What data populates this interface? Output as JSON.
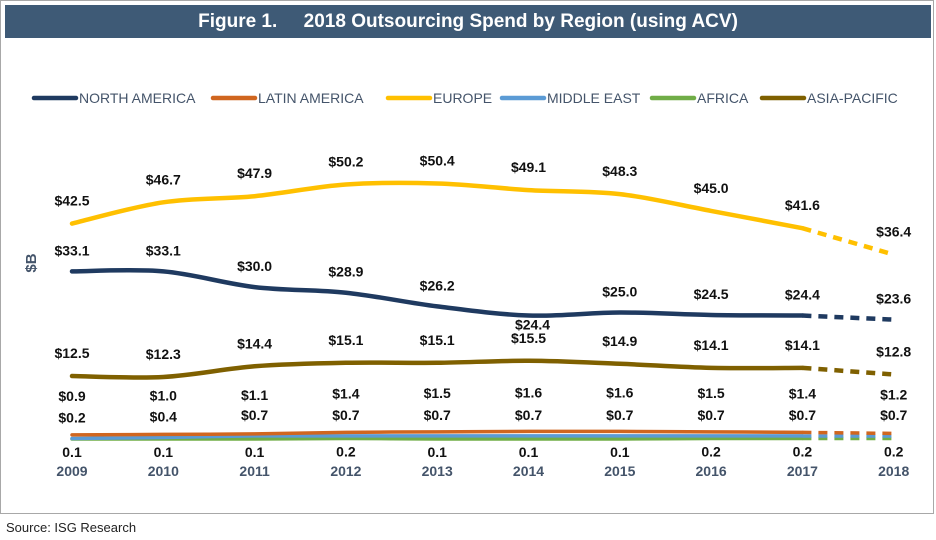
{
  "figure": {
    "title": "Figure 1.     2018 Outsourcing Spend by Region (using ACV)",
    "source": "Source: ISG Research"
  },
  "chart_data": {
    "type": "line",
    "title": "2018 Outsourcing Spend by Region (using ACV)",
    "ylabel": "$B",
    "xlabel": "",
    "x": [
      2009,
      2010,
      2011,
      2012,
      2013,
      2014,
      2015,
      2016,
      2017,
      2018
    ],
    "ylim": [
      0,
      55
    ],
    "grid": false,
    "legend_position": "top",
    "projected_from_index": 8,
    "series": [
      {
        "name": "NORTH AMERICA",
        "color": "#1f3a60",
        "values": [
          33.1,
          33.1,
          30.0,
          28.9,
          26.2,
          24.4,
          25.0,
          24.5,
          24.4,
          23.6
        ],
        "labels": [
          "$33.1",
          "$33.1",
          "$30.0",
          "$28.9",
          "$26.2",
          "$24.4",
          "$25.0",
          "$24.5",
          "$24.4",
          "$23.6"
        ],
        "label_side": [
          "above",
          "above",
          "above",
          "above",
          "above",
          "below",
          "above",
          "above",
          "above",
          "above"
        ]
      },
      {
        "name": "LATIN AMERICA",
        "color": "#d0661f",
        "values": [
          0.9,
          1.0,
          1.1,
          1.4,
          1.5,
          1.6,
          1.6,
          1.5,
          1.4,
          1.2
        ],
        "labels": [
          "$0.9",
          "$1.0",
          "$1.1",
          "$1.4",
          "$1.5",
          "$1.6",
          "$1.6",
          "$1.5",
          "$1.4",
          "$1.2"
        ],
        "label_side": [
          "above",
          "above",
          "above",
          "above",
          "above",
          "above",
          "above",
          "above",
          "above",
          "above"
        ]
      },
      {
        "name": "EUROPE",
        "color": "#ffc000",
        "values": [
          42.5,
          46.7,
          47.9,
          50.2,
          50.4,
          49.1,
          48.3,
          45.0,
          41.6,
          36.4
        ],
        "labels": [
          "$42.5",
          "$46.7",
          "$47.9",
          "$50.2",
          "$50.4",
          "$49.1",
          "$48.3",
          "$45.0",
          "$41.6",
          "$36.4"
        ],
        "label_side": [
          "above",
          "above",
          "above",
          "above",
          "above",
          "above",
          "above",
          "above",
          "above",
          "above"
        ]
      },
      {
        "name": "MIDDLE EAST",
        "color": "#5b9bd5",
        "values": [
          0.2,
          0.4,
          0.7,
          0.7,
          0.7,
          0.7,
          0.7,
          0.7,
          0.7,
          0.7
        ],
        "labels": [
          "$0.2",
          "$0.4",
          "$0.7",
          "$0.7",
          "$0.7",
          "$0.7",
          "$0.7",
          "$0.7",
          "$0.7",
          "$0.7"
        ],
        "label_side": [
          "above",
          "above",
          "above",
          "above",
          "above",
          "above",
          "above",
          "above",
          "above",
          "above"
        ]
      },
      {
        "name": "AFRICA",
        "color": "#70ad47",
        "values": [
          0.1,
          0.1,
          0.1,
          0.2,
          0.1,
          0.1,
          0.1,
          0.2,
          0.2,
          0.2
        ],
        "labels": [
          "0.1",
          "0.1",
          "0.1",
          "0.2",
          "0.1",
          "0.1",
          "0.1",
          "0.2",
          "0.2",
          "0.2"
        ],
        "label_side": [
          "below",
          "below",
          "below",
          "below",
          "below",
          "below",
          "below",
          "below",
          "below",
          "below"
        ]
      },
      {
        "name": "ASIA-PACIFIC",
        "color": "#7f6000",
        "values": [
          12.5,
          12.3,
          14.4,
          15.1,
          15.1,
          15.5,
          14.9,
          14.1,
          14.1,
          12.8
        ],
        "labels": [
          "$12.5",
          "$12.3",
          "$14.4",
          "$15.1",
          "$15.1",
          "$15.5",
          "$14.9",
          "$14.1",
          "$14.1",
          "$12.8"
        ],
        "label_side": [
          "above",
          "above",
          "above",
          "above",
          "above",
          "above",
          "above",
          "above",
          "above",
          "above"
        ]
      }
    ]
  }
}
